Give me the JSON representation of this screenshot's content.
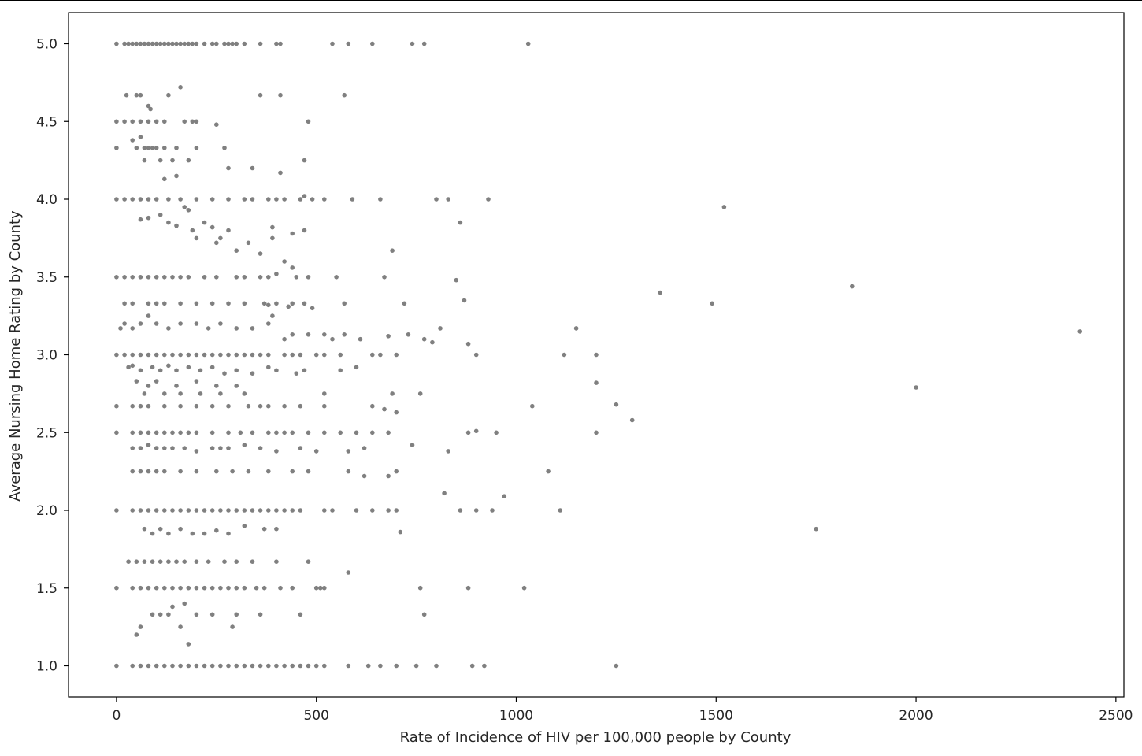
{
  "chart_data": {
    "type": "scatter",
    "title": "",
    "xlabel": "Rate of Incidence of HIV per 100,000 people by County",
    "ylabel": "Average Nursing Home Rating by County",
    "xlim": [
      -120,
      2520
    ],
    "ylim": [
      0.8,
      5.2
    ],
    "xticks": [
      0,
      500,
      1000,
      1500,
      2000,
      2500
    ],
    "xtick_labels": [
      "0",
      "500",
      "1000",
      "1500",
      "2000",
      "2500"
    ],
    "yticks": [
      1.0,
      1.5,
      2.0,
      2.5,
      3.0,
      3.5,
      4.0,
      4.5,
      5.0
    ],
    "ytick_labels": [
      "1.0",
      "1.5",
      "2.0",
      "2.5",
      "3.0",
      "3.5",
      "4.0",
      "4.5",
      "5.0"
    ],
    "grid": false,
    "legend": "none",
    "colors": {
      "marker": "#808080",
      "axes": "#000000",
      "text": "#262626"
    },
    "series": [
      {
        "x": [
          0,
          20,
          30,
          40,
          50,
          60,
          70,
          80,
          90,
          100,
          110,
          120,
          130,
          140,
          150,
          160,
          170,
          180,
          190,
          200,
          220,
          240,
          250,
          270,
          280,
          290,
          300,
          320,
          360,
          400,
          410,
          540,
          580,
          640,
          740,
          770,
          1030,
          25,
          50,
          60,
          130,
          160,
          360,
          410,
          570,
          80,
          85,
          0,
          20,
          40,
          60,
          80,
          100,
          120,
          170,
          190,
          200,
          250,
          480,
          0,
          50,
          70,
          80,
          90,
          100,
          120,
          150,
          200,
          270,
          40,
          60,
          70,
          110,
          140,
          180,
          280,
          340,
          410,
          470,
          120,
          150,
          0,
          20,
          40,
          60,
          80,
          100,
          130,
          160,
          200,
          240,
          280,
          320,
          340,
          380,
          400,
          420,
          460,
          470,
          490,
          520,
          590,
          660,
          800,
          830,
          930,
          1520,
          170,
          180,
          60,
          80,
          110,
          130,
          150,
          190,
          220,
          240,
          280,
          390,
          440,
          860,
          470,
          390,
          200,
          250,
          260,
          690,
          330,
          300,
          360,
          420,
          440,
          0,
          20,
          40,
          60,
          80,
          100,
          120,
          140,
          160,
          180,
          220,
          250,
          300,
          320,
          360,
          380,
          400,
          450,
          480,
          550,
          670,
          850,
          1840,
          1360,
          20,
          40,
          80,
          100,
          120,
          160,
          200,
          240,
          280,
          320,
          370,
          380,
          400,
          430,
          440,
          470,
          490,
          570,
          720,
          870,
          1490,
          10,
          20,
          40,
          60,
          80,
          100,
          130,
          160,
          200,
          230,
          260,
          300,
          340,
          380,
          390,
          420,
          440,
          480,
          520,
          540,
          570,
          610,
          680,
          730,
          770,
          790,
          810,
          1150,
          2410,
          0,
          20,
          40,
          60,
          80,
          100,
          120,
          140,
          160,
          180,
          200,
          220,
          240,
          260,
          280,
          300,
          320,
          340,
          360,
          380,
          420,
          440,
          460,
          500,
          520,
          560,
          640,
          660,
          700,
          880,
          900,
          1120,
          1200,
          30,
          40,
          60,
          90,
          110,
          130,
          150,
          180,
          210,
          240,
          270,
          300,
          340,
          380,
          400,
          450,
          470,
          560,
          600,
          50,
          80,
          100,
          150,
          200,
          250,
          300,
          1200,
          2000,
          70,
          120,
          160,
          210,
          260,
          320,
          520,
          690,
          760,
          0,
          40,
          60,
          80,
          120,
          160,
          200,
          240,
          280,
          330,
          360,
          380,
          420,
          460,
          520,
          640,
          670,
          700,
          1040,
          1250,
          1290,
          0,
          40,
          60,
          80,
          100,
          120,
          140,
          160,
          180,
          200,
          240,
          280,
          310,
          340,
          380,
          400,
          420,
          440,
          480,
          520,
          560,
          600,
          640,
          680,
          880,
          900,
          950,
          1200,
          40,
          60,
          80,
          100,
          120,
          140,
          170,
          200,
          240,
          260,
          280,
          320,
          360,
          400,
          460,
          500,
          580,
          620,
          740,
          830,
          40,
          60,
          80,
          100,
          120,
          160,
          200,
          250,
          290,
          330,
          380,
          440,
          480,
          580,
          620,
          680,
          700,
          1080,
          970,
          820,
          0,
          40,
          60,
          80,
          100,
          120,
          140,
          160,
          180,
          200,
          220,
          240,
          260,
          280,
          300,
          320,
          340,
          360,
          380,
          400,
          420,
          440,
          460,
          520,
          540,
          600,
          640,
          680,
          700,
          860,
          900,
          940,
          1110,
          70,
          90,
          110,
          130,
          160,
          190,
          220,
          250,
          280,
          370,
          400,
          1750,
          710,
          320,
          30,
          50,
          70,
          90,
          110,
          130,
          150,
          170,
          200,
          230,
          270,
          300,
          340,
          400,
          480,
          580,
          0,
          40,
          60,
          80,
          100,
          120,
          140,
          160,
          180,
          200,
          220,
          240,
          260,
          280,
          300,
          320,
          350,
          370,
          410,
          440,
          500,
          510,
          520,
          760,
          880,
          1020,
          90,
          110,
          130,
          140,
          170,
          200,
          240,
          300,
          360,
          460,
          50,
          60,
          160,
          180,
          290,
          770,
          0,
          40,
          60,
          80,
          100,
          120,
          140,
          160,
          180,
          200,
          220,
          240,
          260,
          280,
          300,
          320,
          340,
          360,
          380,
          400,
          420,
          440,
          460,
          480,
          500,
          520,
          580,
          630,
          660,
          700,
          750,
          800,
          890,
          920,
          1250
        ],
        "y": [
          5,
          5,
          5,
          5,
          5,
          5,
          5,
          5,
          5,
          5,
          5,
          5,
          5,
          5,
          5,
          5,
          5,
          5,
          5,
          5,
          5,
          5,
          5,
          5,
          5,
          5,
          5,
          5,
          5,
          5,
          5,
          5,
          5,
          5,
          5,
          5,
          5,
          4.67,
          4.67,
          4.67,
          4.67,
          4.72,
          4.67,
          4.67,
          4.67,
          4.6,
          4.58,
          4.5,
          4.5,
          4.5,
          4.5,
          4.5,
          4.5,
          4.5,
          4.5,
          4.5,
          4.5,
          4.48,
          4.5,
          4.33,
          4.33,
          4.33,
          4.33,
          4.33,
          4.33,
          4.33,
          4.33,
          4.33,
          4.33,
          4.38,
          4.4,
          4.25,
          4.25,
          4.25,
          4.25,
          4.2,
          4.2,
          4.17,
          4.25,
          4.13,
          4.15,
          4,
          4,
          4,
          4,
          4,
          4,
          4,
          4,
          4,
          4,
          4,
          4,
          4,
          4,
          4,
          4,
          4,
          4.02,
          4,
          4,
          4,
          4,
          4,
          4,
          4,
          3.95,
          3.95,
          3.93,
          3.87,
          3.88,
          3.9,
          3.85,
          3.83,
          3.8,
          3.85,
          3.82,
          3.8,
          3.82,
          3.78,
          3.85,
          3.8,
          3.75,
          3.75,
          3.72,
          3.75,
          3.67,
          3.72,
          3.67,
          3.65,
          3.6,
          3.56,
          3.5,
          3.5,
          3.5,
          3.5,
          3.5,
          3.5,
          3.5,
          3.5,
          3.5,
          3.5,
          3.5,
          3.5,
          3.5,
          3.5,
          3.5,
          3.5,
          3.52,
          3.5,
          3.5,
          3.5,
          3.5,
          3.48,
          3.44,
          3.4,
          3.33,
          3.33,
          3.33,
          3.33,
          3.33,
          3.33,
          3.33,
          3.33,
          3.33,
          3.33,
          3.33,
          3.32,
          3.33,
          3.31,
          3.33,
          3.33,
          3.3,
          3.33,
          3.33,
          3.35,
          3.33,
          3.17,
          3.2,
          3.17,
          3.2,
          3.25,
          3.2,
          3.17,
          3.2,
          3.2,
          3.17,
          3.2,
          3.17,
          3.17,
          3.2,
          3.25,
          3.1,
          3.13,
          3.13,
          3.13,
          3.1,
          3.13,
          3.1,
          3.12,
          3.13,
          3.1,
          3.08,
          3.17,
          3.17,
          3.15,
          3,
          3,
          3,
          3,
          3,
          3,
          3,
          3,
          3,
          3,
          3,
          3,
          3,
          3,
          3,
          3,
          3,
          3,
          3,
          3,
          3,
          3,
          3,
          3,
          3,
          3,
          3,
          3,
          3,
          3.07,
          3,
          3,
          3,
          2.92,
          2.93,
          2.9,
          2.92,
          2.9,
          2.93,
          2.9,
          2.92,
          2.9,
          2.92,
          2.88,
          2.9,
          2.88,
          2.92,
          2.9,
          2.88,
          2.9,
          2.9,
          2.92,
          2.83,
          2.8,
          2.83,
          2.8,
          2.83,
          2.8,
          2.8,
          2.82,
          2.79,
          2.75,
          2.75,
          2.75,
          2.75,
          2.75,
          2.75,
          2.75,
          2.75,
          2.75,
          2.67,
          2.67,
          2.67,
          2.67,
          2.67,
          2.67,
          2.67,
          2.67,
          2.67,
          2.67,
          2.67,
          2.67,
          2.67,
          2.67,
          2.67,
          2.67,
          2.65,
          2.63,
          2.67,
          2.68,
          2.58,
          2.5,
          2.5,
          2.5,
          2.5,
          2.5,
          2.5,
          2.5,
          2.5,
          2.5,
          2.5,
          2.5,
          2.5,
          2.5,
          2.5,
          2.5,
          2.5,
          2.5,
          2.5,
          2.5,
          2.5,
          2.5,
          2.5,
          2.5,
          2.5,
          2.5,
          2.51,
          2.5,
          2.5,
          2.4,
          2.4,
          2.42,
          2.4,
          2.4,
          2.4,
          2.4,
          2.38,
          2.4,
          2.4,
          2.4,
          2.42,
          2.4,
          2.38,
          2.4,
          2.38,
          2.38,
          2.4,
          2.42,
          2.38,
          2.25,
          2.25,
          2.25,
          2.25,
          2.25,
          2.25,
          2.25,
          2.25,
          2.25,
          2.25,
          2.25,
          2.25,
          2.25,
          2.25,
          2.22,
          2.22,
          2.25,
          2.25,
          2.09,
          2.11,
          2,
          2,
          2,
          2,
          2,
          2,
          2,
          2,
          2,
          2,
          2,
          2,
          2,
          2,
          2,
          2,
          2,
          2,
          2,
          2,
          2,
          2,
          2,
          2,
          2,
          2,
          2,
          2,
          2,
          2,
          2,
          2,
          2,
          1.88,
          1.85,
          1.88,
          1.85,
          1.88,
          1.85,
          1.85,
          1.87,
          1.85,
          1.88,
          1.88,
          1.88,
          1.86,
          1.9,
          1.67,
          1.67,
          1.67,
          1.67,
          1.67,
          1.67,
          1.67,
          1.67,
          1.67,
          1.67,
          1.67,
          1.67,
          1.67,
          1.67,
          1.67,
          1.6,
          1.5,
          1.5,
          1.5,
          1.5,
          1.5,
          1.5,
          1.5,
          1.5,
          1.5,
          1.5,
          1.5,
          1.5,
          1.5,
          1.5,
          1.5,
          1.5,
          1.5,
          1.5,
          1.5,
          1.5,
          1.5,
          1.5,
          1.5,
          1.5,
          1.5,
          1.5,
          1.33,
          1.33,
          1.33,
          1.38,
          1.4,
          1.33,
          1.33,
          1.33,
          1.33,
          1.33,
          1.2,
          1.25,
          1.25,
          1.14,
          1.25,
          1.33,
          1,
          1,
          1,
          1,
          1,
          1,
          1,
          1,
          1,
          1,
          1,
          1,
          1,
          1,
          1,
          1,
          1,
          1,
          1,
          1,
          1,
          1,
          1,
          1,
          1,
          1,
          1,
          1,
          1,
          1,
          1,
          1,
          1,
          1,
          1
        ]
      }
    ]
  }
}
